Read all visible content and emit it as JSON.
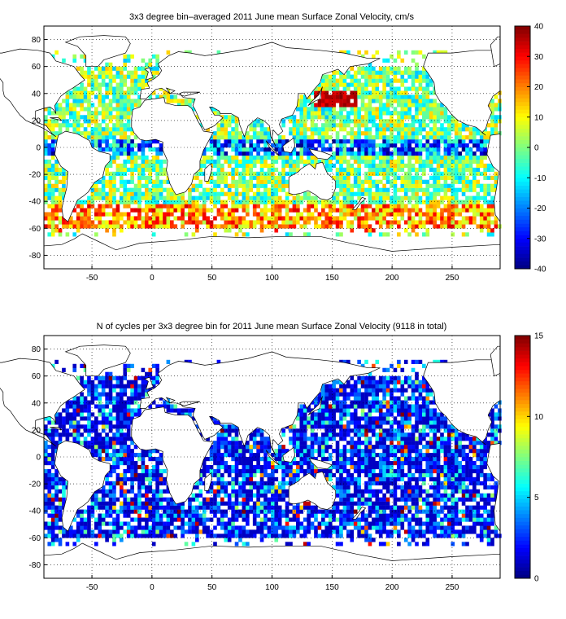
{
  "chart_data": [
    {
      "type": "heatmap",
      "title": "3x3 degree bin–averaged 2011 June mean Surface Zonal Velocity, cm/s",
      "xlim": [
        -90,
        290
      ],
      "ylim": [
        -90,
        90
      ],
      "xticks": [
        -50,
        0,
        50,
        100,
        150,
        200,
        250
      ],
      "yticks": [
        80,
        60,
        40,
        20,
        0,
        -20,
        -40,
        -60,
        -80
      ],
      "grid": true,
      "colormap": "jet",
      "colorbar": {
        "min": -40,
        "max": 40,
        "ticks": [
          40,
          30,
          20,
          10,
          0,
          -10,
          -20,
          -30,
          -40
        ]
      },
      "bin_size_deg": 3
    },
    {
      "type": "heatmap",
      "title": "N of cycles per 3x3 degree bin for 2011 June mean Surface Zonal Velocity (9118 in total)",
      "xlim": [
        -90,
        290
      ],
      "ylim": [
        -90,
        90
      ],
      "xticks": [
        -50,
        0,
        50,
        100,
        150,
        200,
        250
      ],
      "yticks": [
        80,
        60,
        40,
        20,
        0,
        -20,
        -40,
        -60,
        -80
      ],
      "grid": true,
      "colormap": "jet",
      "colorbar": {
        "min": 0,
        "max": 15,
        "ticks": [
          15,
          10,
          5,
          0
        ]
      },
      "bin_size_deg": 3
    }
  ]
}
